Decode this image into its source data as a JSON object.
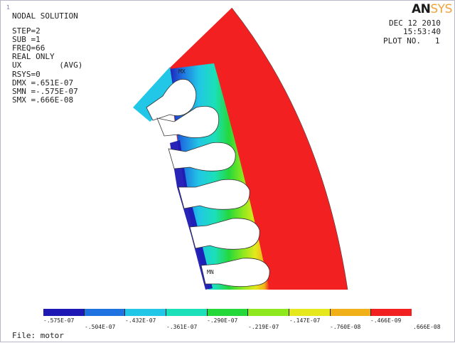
{
  "window_number": "1",
  "title": "NODAL SOLUTION",
  "info_lines": [
    "STEP=2",
    "SUB =1",
    "FREQ=66",
    "REAL ONLY",
    "UX        (AVG)",
    "RSYS=0",
    "DMX =.651E-07",
    "SMN =-.575E-07",
    "SMX =.666E-08"
  ],
  "brand": {
    "main": "AN",
    "accent": "SYS",
    "accent_color": "#f2a33a"
  },
  "date": "DEC 12 2010",
  "time": "15:53:40",
  "plot_no": "PLOT NO.   1",
  "marker_mx": "MX",
  "marker_mn": "MN",
  "file_label": "File: motor",
  "legend": {
    "colors": [
      "#1e18b4",
      "#1f73e0",
      "#22c6e6",
      "#1be0b8",
      "#25d83a",
      "#8fe81e",
      "#e4e81c",
      "#f2b018",
      "#f22020"
    ],
    "labels": [
      "-.575E-07",
      "-.504E-07",
      "-.432E-07",
      "-.361E-07",
      "-.290E-07",
      "-.219E-07",
      "-.147E-07",
      "-.760E-08",
      "-.466E-09",
      ".666E-08"
    ]
  }
}
